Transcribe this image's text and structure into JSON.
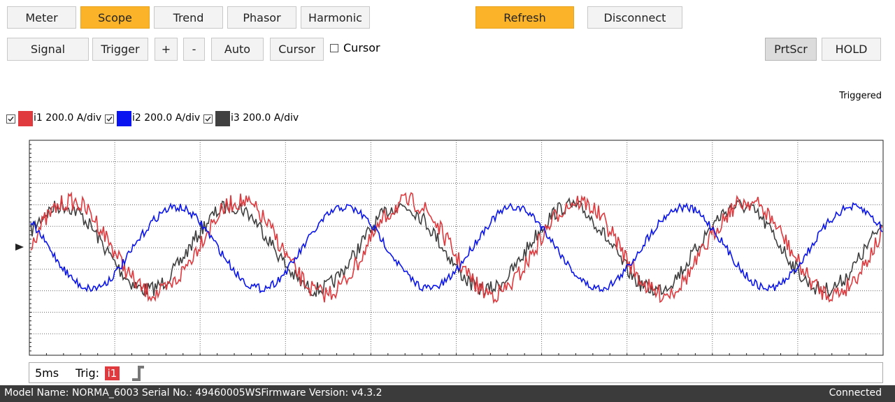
{
  "tabs": [
    "Meter",
    "Scope",
    "Trend",
    "Phasor",
    "Harmonic"
  ],
  "actions": [
    "Refresh",
    "Disconnect"
  ],
  "toolbar": [
    "Signal",
    "Trigger",
    "+",
    "-",
    "Auto",
    "Cursor"
  ],
  "cursor_checkbox": "Cursor",
  "right_buttons": [
    "PrtScr",
    "HOLD"
  ],
  "status_label": "Triggered",
  "legend": [
    {
      "name": "i1 200.0 A/div",
      "color": "#e0393e"
    },
    {
      "name": "i2 200.0 A/div",
      "color": "#0a14f0"
    },
    {
      "name": "i3 200.0 A/div",
      "color": "#404040"
    }
  ],
  "footer": {
    "timebase": "5ms",
    "trigger_label": "Trig:",
    "trigger_source": "i1"
  },
  "statusbar": {
    "info": "Model Name:  NORMA_6003 Serial No.:  49460005WSFirmware Version:  v4.3.2",
    "state": "Connected"
  }
}
